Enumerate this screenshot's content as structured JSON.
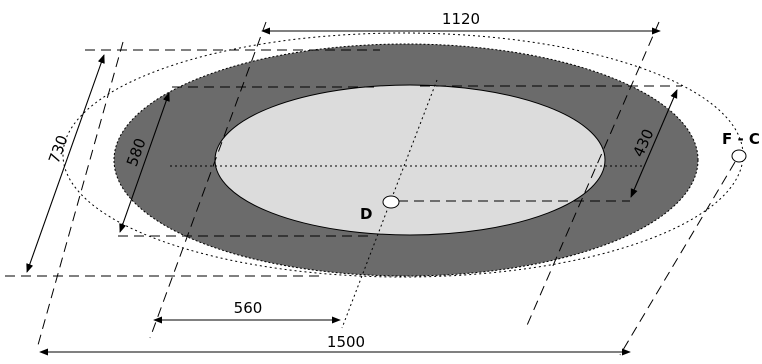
{
  "dimensions": {
    "top_width": "1120",
    "bottom_width": "1500",
    "inner_half_width": "560",
    "outer_height": "730",
    "mid_height": "580",
    "inner_height": "430"
  },
  "labels": {
    "drain": "D",
    "faucet_connection": "F - C"
  },
  "colors": {
    "outer_rim": "#6b6b6b",
    "basin": "#dcdcdc",
    "background": "#ffffff",
    "line": "#000000"
  }
}
